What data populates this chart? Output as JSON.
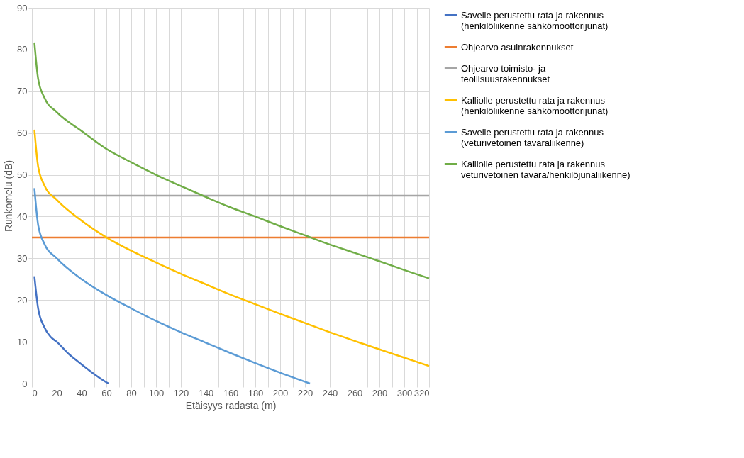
{
  "chart_data": {
    "type": "line",
    "xlabel": "Etäisyys radasta (m)",
    "ylabel": "Runkomelu (dB)",
    "xlim": [
      0,
      320
    ],
    "ylim": [
      0,
      90
    ],
    "xticks": [
      0,
      {
        "value": 10,
        "label": null
      },
      20,
      {
        "value": 30,
        "label": null
      },
      40,
      {
        "value": 50,
        "label": null
      },
      60,
      {
        "value": 70,
        "label": null
      },
      80,
      {
        "value": 90,
        "label": null
      },
      100,
      {
        "value": 110,
        "label": null
      },
      120,
      {
        "value": 130,
        "label": null
      },
      140,
      {
        "value": 150,
        "label": null
      },
      160,
      {
        "value": 170,
        "label": null
      },
      180,
      {
        "value": 190,
        "label": null
      },
      200,
      {
        "value": 210,
        "label": null
      },
      220,
      {
        "value": 230,
        "label": null
      },
      240,
      {
        "value": 250,
        "label": null
      },
      260,
      {
        "value": 270,
        "label": null
      },
      280,
      {
        "value": 290,
        "label": null
      },
      300,
      {
        "value": 310,
        "label": null
      },
      320
    ],
    "yticks": [
      0,
      10,
      20,
      30,
      40,
      50,
      60,
      70,
      80,
      90
    ],
    "grid": true,
    "legend": "right",
    "marker": "none",
    "line_style": "solid",
    "series": [
      {
        "name": "Savelle perustettu rata ja rakennus (henkilöliikenne sähkömoottorijunat)",
        "color": "#4472c4",
        "x": [
          2,
          5,
          10,
          15,
          20,
          30,
          40,
          50,
          60,
          62
        ],
        "values": [
          25.7,
          18,
          13.5,
          11.2,
          10,
          7,
          4.6,
          2.3,
          0.3,
          0
        ]
      },
      {
        "name": "Ohjearvo asuinrakennukset",
        "color": "#ed7d31",
        "x": [
          0,
          320
        ],
        "values": [
          35,
          35
        ]
      },
      {
        "name": "Ohjearvo toimisto- ja teollisuusrakennukset",
        "color": "#a5a5a5",
        "x": [
          0,
          320
        ],
        "values": [
          45,
          45
        ]
      },
      {
        "name": "Kalliolle perustettu rata ja rakennus (henkilöliikenne sähkömoottorijunat)",
        "color": "#ffc000",
        "x": [
          2,
          5,
          10,
          20,
          40,
          60,
          80,
          100,
          120,
          140,
          160,
          180,
          200,
          220,
          240,
          260,
          280,
          300,
          320
        ],
        "values": [
          60.8,
          52,
          47.5,
          44,
          39,
          35,
          31.8,
          29,
          26.3,
          23.8,
          21.3,
          19,
          16.7,
          14.5,
          12.3,
          10.2,
          8.2,
          6.2,
          4.2
        ]
      },
      {
        "name": "Savelle perustettu rata ja rakennus (veturivetoinen tavaraliikenne)",
        "color": "#5b9bd5",
        "x": [
          2,
          5,
          10,
          20,
          40,
          60,
          80,
          100,
          120,
          140,
          160,
          180,
          200,
          224
        ],
        "values": [
          46.8,
          38,
          33.5,
          30,
          25,
          21.2,
          18,
          15,
          12.3,
          9.8,
          7.3,
          4.9,
          2.6,
          0
        ]
      },
      {
        "name": "Kalliolle perustettu rata ja rakennus veturivetoinen tavara/henkilöjunaliikenne)",
        "color": "#70ad47",
        "x": [
          2,
          5,
          10,
          20,
          40,
          60,
          80,
          100,
          120,
          140,
          160,
          180,
          200,
          220,
          240,
          260,
          280,
          300,
          320
        ],
        "values": [
          81.7,
          73,
          68.5,
          65,
          60.5,
          56.2,
          53,
          50,
          47.3,
          44.7,
          42.2,
          40,
          37.7,
          35.5,
          33.3,
          31.3,
          29.3,
          27.2,
          25.2
        ]
      }
    ]
  }
}
